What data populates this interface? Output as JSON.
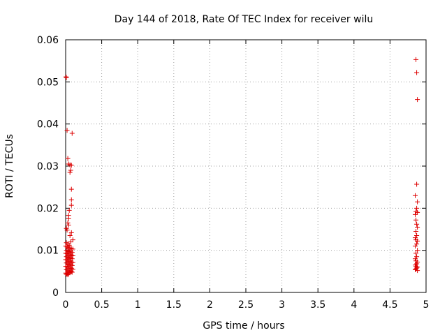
{
  "chart_data": {
    "type": "scatter",
    "title": "Day 144 of 2018, Rate Of TEC Index for receiver wilu",
    "xlabel": "GPS time / hours",
    "ylabel": "ROTI / TECUs",
    "xlim": [
      0,
      5
    ],
    "ylim": [
      0,
      0.06
    ],
    "xticks": [
      0,
      0.5,
      1,
      1.5,
      2,
      2.5,
      3,
      3.5,
      4,
      4.5,
      5
    ],
    "yticks": [
      0,
      0.01,
      0.02,
      0.03,
      0.04,
      0.05,
      0.06
    ],
    "xtick_labels": [
      "0",
      "0.5",
      "1",
      "1.5",
      "2",
      "2.5",
      "3",
      "3.5",
      "4",
      "4.5",
      "5"
    ],
    "ytick_labels": [
      "0",
      "0.01",
      "0.02",
      "0.03",
      "0.04",
      "0.05",
      "0.06"
    ],
    "grid": true,
    "marker": "+",
    "color": "#dd0000",
    "series": [
      {
        "name": "ROTI",
        "points": [
          [
            0.005,
            0.0512
          ],
          [
            0.01,
            0.051
          ],
          [
            0.02,
            0.0385
          ],
          [
            0.09,
            0.0378
          ],
          [
            0.03,
            0.0318
          ],
          [
            0.04,
            0.0305
          ],
          [
            0.06,
            0.0303
          ],
          [
            0.08,
            0.0302
          ],
          [
            0.07,
            0.029
          ],
          [
            0.06,
            0.0285
          ],
          [
            0.08,
            0.0245
          ],
          [
            0.08,
            0.022
          ],
          [
            0.08,
            0.0207
          ],
          [
            0.05,
            0.0195
          ],
          [
            0.04,
            0.0183
          ],
          [
            0.04,
            0.0175
          ],
          [
            0.03,
            0.0165
          ],
          [
            0.04,
            0.016
          ],
          [
            0.01,
            0.0152
          ],
          [
            0.02,
            0.0148
          ],
          [
            0.08,
            0.0142
          ],
          [
            0.06,
            0.0135
          ],
          [
            0.1,
            0.0125
          ],
          [
            0.07,
            0.012
          ],
          [
            0.01,
            0.0118
          ],
          [
            0.03,
            0.0115
          ],
          [
            0.05,
            0.0112
          ],
          [
            0.0,
            0.011
          ],
          [
            0.02,
            0.0108
          ],
          [
            0.04,
            0.0106
          ],
          [
            0.06,
            0.0105
          ],
          [
            0.08,
            0.0104
          ],
          [
            0.1,
            0.0103
          ],
          [
            0.01,
            0.01
          ],
          [
            0.03,
            0.0098
          ],
          [
            0.05,
            0.0097
          ],
          [
            0.07,
            0.0096
          ],
          [
            0.09,
            0.0095
          ],
          [
            0.0,
            0.0093
          ],
          [
            0.02,
            0.0092
          ],
          [
            0.04,
            0.009
          ],
          [
            0.06,
            0.0089
          ],
          [
            0.08,
            0.0088
          ],
          [
            0.1,
            0.0087
          ],
          [
            0.01,
            0.0085
          ],
          [
            0.03,
            0.0084
          ],
          [
            0.05,
            0.0082
          ],
          [
            0.07,
            0.0081
          ],
          [
            0.09,
            0.008
          ],
          [
            0.0,
            0.0078
          ],
          [
            0.02,
            0.0077
          ],
          [
            0.04,
            0.0075
          ],
          [
            0.06,
            0.0074
          ],
          [
            0.08,
            0.0072
          ],
          [
            0.1,
            0.0071
          ],
          [
            0.01,
            0.007
          ],
          [
            0.03,
            0.0068
          ],
          [
            0.05,
            0.0067
          ],
          [
            0.07,
            0.0065
          ],
          [
            0.09,
            0.0064
          ],
          [
            0.0,
            0.0062
          ],
          [
            0.02,
            0.0061
          ],
          [
            0.04,
            0.006
          ],
          [
            0.06,
            0.0058
          ],
          [
            0.08,
            0.0057
          ],
          [
            0.1,
            0.0055
          ],
          [
            0.01,
            0.0054
          ],
          [
            0.03,
            0.0052
          ],
          [
            0.05,
            0.0051
          ],
          [
            0.07,
            0.005
          ],
          [
            0.09,
            0.0048
          ],
          [
            0.0,
            0.0046
          ],
          [
            0.02,
            0.0045
          ],
          [
            0.04,
            0.0044
          ],
          [
            0.06,
            0.0047
          ],
          [
            0.08,
            0.0049
          ],
          [
            0.01,
            0.0043
          ],
          [
            0.03,
            0.0042
          ],
          [
            4.86,
            0.0553
          ],
          [
            4.87,
            0.0522
          ],
          [
            4.88,
            0.0458
          ],
          [
            4.87,
            0.0257
          ],
          [
            4.85,
            0.023
          ],
          [
            4.88,
            0.0215
          ],
          [
            4.87,
            0.02
          ],
          [
            4.86,
            0.0192
          ],
          [
            4.88,
            0.019
          ],
          [
            4.85,
            0.0185
          ],
          [
            4.86,
            0.0172
          ],
          [
            4.87,
            0.0162
          ],
          [
            4.88,
            0.0155
          ],
          [
            4.86,
            0.0145
          ],
          [
            4.87,
            0.0135
          ],
          [
            4.85,
            0.013
          ],
          [
            4.86,
            0.0125
          ],
          [
            4.88,
            0.0122
          ],
          [
            4.87,
            0.0115
          ],
          [
            4.85,
            0.011
          ],
          [
            4.88,
            0.01
          ],
          [
            4.86,
            0.0093
          ],
          [
            4.87,
            0.0085
          ],
          [
            4.85,
            0.008
          ],
          [
            4.86,
            0.0075
          ],
          [
            4.88,
            0.0072
          ],
          [
            4.87,
            0.0068
          ],
          [
            4.85,
            0.0065
          ],
          [
            4.86,
            0.0062
          ],
          [
            4.88,
            0.006
          ],
          [
            4.87,
            0.0058
          ],
          [
            4.86,
            0.0056
          ],
          [
            4.85,
            0.0054
          ],
          [
            4.88,
            0.0052
          ]
        ]
      }
    ]
  }
}
